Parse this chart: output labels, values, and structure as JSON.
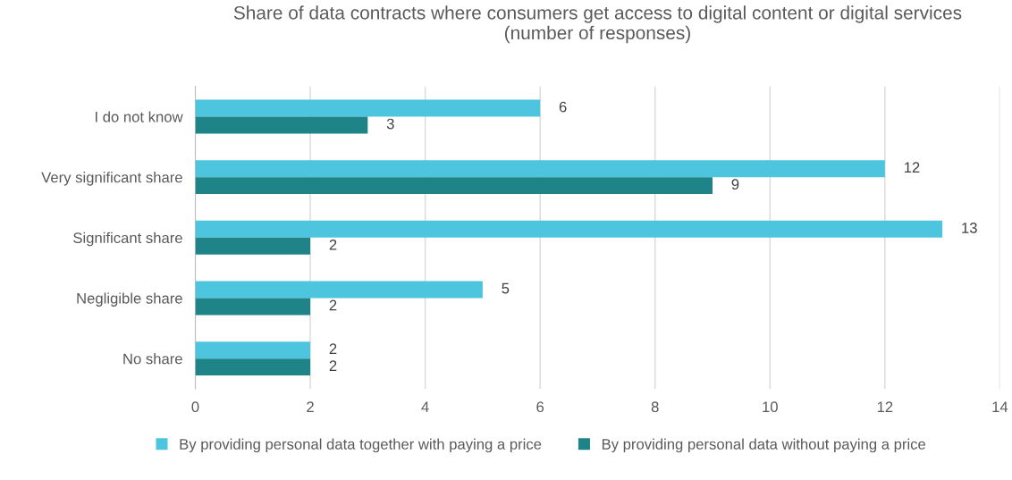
{
  "chart_data": {
    "type": "bar",
    "orientation": "horizontal",
    "title": "Share of data contracts where consumers get access to digital content or digital services\n(number of responses)",
    "categories": [
      "I do not know",
      "Very significant share",
      "Significant share",
      "Negligible share",
      "No share"
    ],
    "series": [
      {
        "name": "By providing personal data together with paying a price",
        "color": "#4dc5de",
        "values": [
          6,
          12,
          13,
          5,
          2
        ]
      },
      {
        "name": "By providing personal data without paying a price",
        "color": "#1e8487",
        "values": [
          3,
          9,
          2,
          2,
          2
        ]
      }
    ],
    "xlim": [
      0,
      14
    ],
    "xticks": [
      0,
      2,
      4,
      6,
      8,
      10,
      12,
      14
    ],
    "grid": "x",
    "legend": "bottom",
    "data_labels": true
  }
}
